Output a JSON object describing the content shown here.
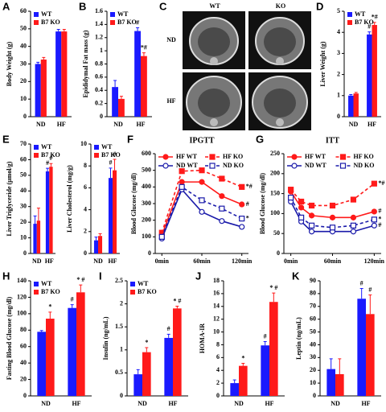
{
  "chart_data": [
    {
      "panel": "A",
      "type": "bar",
      "ylabel": "Body Weight (g)",
      "categories": [
        "ND",
        "HF"
      ],
      "ylim": [
        0,
        60
      ],
      "yticks": [
        0,
        10,
        20,
        30,
        40,
        50,
        60
      ],
      "legend": true,
      "series": [
        {
          "name": "WT",
          "color": "#1a1aff",
          "values": [
            30,
            48.5
          ],
          "errors": [
            1,
            1.2
          ]
        },
        {
          "name": "B7 KO",
          "color": "#ff1a1a",
          "values": [
            32.5,
            48.5
          ],
          "errors": [
            1.2,
            1.2
          ]
        }
      ]
    },
    {
      "panel": "B",
      "type": "bar",
      "ylabel": "Epididymal Fat mass (g)",
      "categories": [
        "ND",
        "HF"
      ],
      "ylim": [
        0,
        1.6
      ],
      "yticks": [
        0,
        0.2,
        0.4,
        0.6,
        0.8,
        1,
        1.2,
        1.4,
        1.6
      ],
      "legend": true,
      "series": [
        {
          "name": "WT",
          "color": "#1a1aff",
          "values": [
            0.45,
            1.3
          ],
          "errors": [
            0.1,
            0.05
          ],
          "significance": [
            null,
            "#"
          ]
        },
        {
          "name": "B7 KO",
          "color": "#ff1a1a",
          "values": [
            0.27,
            0.92
          ],
          "errors": [
            0.04,
            0.05
          ],
          "significance": [
            null,
            "*#"
          ]
        }
      ]
    },
    {
      "panel": "C",
      "type": "image",
      "columns": [
        "WT",
        "KO"
      ],
      "rows": [
        "ND",
        "HF"
      ]
    },
    {
      "panel": "D",
      "type": "bar",
      "ylabel": "Liver Weight (g)",
      "categories": [
        "ND",
        "HF"
      ],
      "ylim": [
        0,
        5
      ],
      "yticks": [
        0,
        1,
        2,
        3,
        4,
        5
      ],
      "legend": true,
      "series": [
        {
          "name": "WT",
          "color": "#1a1aff",
          "values": [
            1.0,
            3.9
          ],
          "errors": [
            0.05,
            0.12
          ],
          "significance": [
            null,
            "#"
          ]
        },
        {
          "name": "B7 KO",
          "color": "#ff1a1a",
          "values": [
            1.1,
            4.35
          ],
          "errors": [
            0.05,
            0.12
          ],
          "significance": [
            null,
            "*#"
          ]
        }
      ]
    },
    {
      "panel": "E",
      "type": "bar",
      "ylabel": "Liver Triglyceride (μmol/g)",
      "categories": [
        "ND",
        "HF"
      ],
      "ylim": [
        0,
        70
      ],
      "yticks": [
        0,
        10,
        20,
        30,
        40,
        50,
        60,
        70
      ],
      "legend": true,
      "series": [
        {
          "name": "WT",
          "color": "#1a1aff",
          "values": [
            19,
            52.5
          ],
          "errors": [
            5,
            2
          ],
          "significance": [
            null,
            "#"
          ]
        },
        {
          "name": "B7 KO",
          "color": "#ff1a1a",
          "values": [
            21,
            55.5
          ],
          "errors": [
            8,
            2
          ],
          "significance": [
            null,
            "#"
          ]
        }
      ]
    },
    {
      "type": "bar",
      "ylabel": "Liver Cholesterol (mg/g)",
      "categories": [
        "ND",
        "HF"
      ],
      "ylim": [
        0,
        10
      ],
      "yticks": [
        0,
        2,
        4,
        6,
        8,
        10
      ],
      "legend": true,
      "series": [
        {
          "name": "WT",
          "color": "#1a1aff",
          "values": [
            1.2,
            6.9
          ],
          "errors": [
            0.3,
            0.9
          ],
          "significance": [
            null,
            "#"
          ]
        },
        {
          "name": "B7 KO",
          "color": "#ff1a1a",
          "values": [
            1.6,
            7.6
          ],
          "errors": [
            0.2,
            1
          ],
          "significance": [
            null,
            "#"
          ]
        }
      ]
    },
    {
      "panel": "F",
      "type": "line",
      "title": "IPGTT",
      "ylabel": "Blood Glucose (mg/dl)",
      "x": [
        0,
        30,
        60,
        90,
        120
      ],
      "xlim": [
        -10,
        130
      ],
      "xticks": [
        {
          "value": 0,
          "label": "0min"
        },
        {
          "value": 60,
          "label": "60min"
        },
        {
          "value": 120,
          "label": "120min"
        }
      ],
      "ylim": [
        0,
        600
      ],
      "yticks": [
        0,
        100,
        200,
        300,
        400,
        500,
        600
      ],
      "series": [
        {
          "name": "HF WT",
          "color": "#ff1a1a",
          "marker": "circle",
          "filled": true,
          "dash": false,
          "values": [
            110,
            430,
            430,
            345,
            295
          ],
          "significance": [
            null,
            null,
            null,
            null,
            "#"
          ]
        },
        {
          "name": "HF KO",
          "color": "#ff1a1a",
          "marker": "square",
          "filled": true,
          "dash": true,
          "values": [
            125,
            495,
            500,
            450,
            400
          ],
          "significance": [
            null,
            null,
            null,
            null,
            "*#"
          ]
        },
        {
          "name": "ND WT",
          "color": "#1a1aaa",
          "marker": "circle",
          "filled": false,
          "dash": false,
          "values": [
            90,
            385,
            250,
            195,
            160
          ]
        },
        {
          "name": "ND KO",
          "color": "#1a1aaa",
          "marker": "square",
          "filled": false,
          "dash": true,
          "values": [
            100,
            400,
            320,
            270,
            210
          ],
          "significance": [
            null,
            null,
            null,
            null,
            "*"
          ]
        }
      ]
    },
    {
      "panel": "G",
      "type": "line",
      "title": "ITT",
      "ylabel": "Blood Glucose (mg/dl)",
      "x": [
        0,
        15,
        30,
        60,
        90,
        120
      ],
      "xlim": [
        -10,
        130
      ],
      "xticks": [
        {
          "value": 0,
          "label": "0min"
        },
        {
          "value": 60,
          "label": "60min"
        },
        {
          "value": 120,
          "label": "120min"
        }
      ],
      "ylim": [
        0,
        250
      ],
      "yticks": [
        0,
        50,
        100,
        150,
        200,
        250
      ],
      "series": [
        {
          "name": "HF WT",
          "color": "#ff1a1a",
          "marker": "circle",
          "filled": true,
          "dash": false,
          "values": [
            155,
            115,
            95,
            90,
            90,
            105
          ],
          "significance": [
            null,
            null,
            null,
            null,
            null,
            "#"
          ]
        },
        {
          "name": "HF KO",
          "color": "#ff1a1a",
          "marker": "square",
          "filled": true,
          "dash": true,
          "values": [
            160,
            130,
            120,
            120,
            135,
            175
          ],
          "significance": [
            null,
            null,
            null,
            null,
            null,
            "*#"
          ]
        },
        {
          "name": "ND WT",
          "color": "#1a1aaa",
          "marker": "circle",
          "filled": false,
          "dash": false,
          "values": [
            130,
            80,
            55,
            55,
            55,
            70
          ],
          "significance": [
            null,
            null,
            null,
            null,
            null,
            "#"
          ]
        },
        {
          "name": "ND KO",
          "color": "#1a1aaa",
          "marker": "square",
          "filled": false,
          "dash": true,
          "values": [
            140,
            90,
            70,
            65,
            70,
            85
          ],
          "significance": [
            null,
            null,
            null,
            null,
            null,
            "*"
          ]
        }
      ]
    },
    {
      "panel": "H",
      "type": "bar",
      "ylabel": "Fasting Blood Glucose (mg/dl)",
      "categories": [
        "ND",
        "HF"
      ],
      "ylim": [
        0,
        140
      ],
      "yticks": [
        0,
        20,
        40,
        60,
        80,
        100,
        120,
        140
      ],
      "legend": true,
      "series": [
        {
          "name": "WT",
          "color": "#1a1aff",
          "values": [
            78,
            107
          ],
          "errors": [
            1.5,
            4
          ],
          "significance": [
            null,
            "#"
          ]
        },
        {
          "name": "B7 KO",
          "color": "#ff1a1a",
          "values": [
            94,
            126
          ],
          "errors": [
            8,
            9
          ],
          "significance": [
            "*",
            "* #"
          ]
        }
      ]
    },
    {
      "panel": "I",
      "type": "bar",
      "ylabel": "Insulin (ng/mL)",
      "categories": [
        "ND",
        "HF"
      ],
      "ylim": [
        0,
        2.5
      ],
      "yticks": [
        0,
        0.5,
        1,
        1.5,
        2,
        2.5
      ],
      "legend": true,
      "series": [
        {
          "name": "WT",
          "color": "#1a1aff",
          "values": [
            0.47,
            1.26
          ],
          "errors": [
            0.1,
            0.08
          ],
          "significance": [
            null,
            "#"
          ]
        },
        {
          "name": "B7 KO",
          "color": "#ff1a1a",
          "values": [
            0.95,
            1.9
          ],
          "errors": [
            0.1,
            0.05
          ],
          "significance": [
            "*",
            "* #"
          ]
        }
      ]
    },
    {
      "panel": "J",
      "type": "bar",
      "ylabel": "HOMA-IR",
      "categories": [
        "ND",
        "HF"
      ],
      "ylim": [
        0,
        18
      ],
      "yticks": [
        0,
        2,
        4,
        6,
        8,
        10,
        12,
        14,
        16,
        18
      ],
      "legend": false,
      "series": [
        {
          "name": "WT",
          "color": "#1a1aff",
          "values": [
            2,
            7.9
          ],
          "errors": [
            0.5,
            0.6
          ],
          "significance": [
            null,
            "#"
          ]
        },
        {
          "name": "B7 KO",
          "color": "#ff1a1a",
          "values": [
            4.7,
            14.7
          ],
          "errors": [
            0.4,
            1.4
          ],
          "significance": [
            "*",
            "* #"
          ]
        }
      ]
    },
    {
      "panel": "K",
      "type": "bar",
      "ylabel": "Leptin (ng/mL)",
      "categories": [
        "ND",
        "HF"
      ],
      "ylim": [
        0,
        90
      ],
      "yticks": [
        0,
        10,
        20,
        30,
        40,
        50,
        60,
        70,
        80,
        90
      ],
      "legend": false,
      "series": [
        {
          "name": "WT",
          "color": "#1a1aff",
          "values": [
            21,
            76
          ],
          "errors": [
            8,
            8
          ],
          "significance": [
            null,
            "#"
          ]
        },
        {
          "name": "B7 KO",
          "color": "#ff1a1a",
          "values": [
            17,
            64
          ],
          "errors": [
            12,
            15
          ],
          "significance": [
            null,
            "#"
          ]
        }
      ]
    }
  ]
}
